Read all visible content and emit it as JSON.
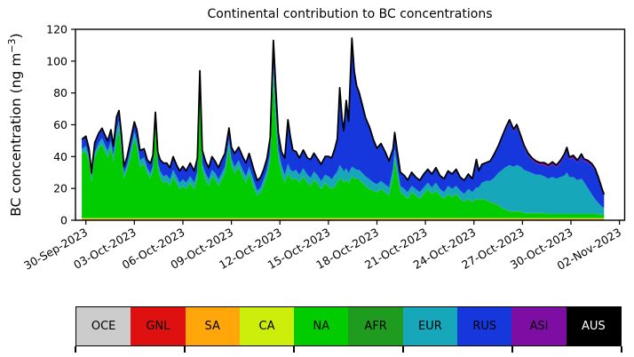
{
  "chart_data": {
    "type": "area",
    "stacked": true,
    "title": "Continental contribution to BC concentrations",
    "ylabel": "BC concentration (ng m−3)",
    "ylabel_parts": {
      "main": "BC concentration (ng m",
      "sup": "−3",
      "close": ")"
    },
    "xlabel": "",
    "ylim": [
      0,
      120
    ],
    "yticks": [
      0,
      20,
      40,
      60,
      80,
      100,
      120
    ],
    "grid": false,
    "legend_position": "bottom-colorbar",
    "x_axis": {
      "unit": "days since 30-Sep-2023",
      "tick_days": [
        0,
        3,
        6,
        9,
        12,
        15,
        18,
        21,
        24,
        27,
        30,
        33
      ],
      "tick_labels": [
        "30-Sep-2023",
        "03-Oct-2023",
        "06-Oct-2023",
        "09-Oct-2023",
        "12-Oct-2023",
        "15-Oct-2023",
        "18-Oct-2023",
        "21-Oct-2023",
        "24-Oct-2023",
        "27-Oct-2023",
        "30-Oct-2023",
        "02-Nov-2023"
      ]
    },
    "legend": {
      "entries": [
        {
          "label": "OCE",
          "color": "#CCCCCC",
          "text": "#000000"
        },
        {
          "label": "GNL",
          "color": "#DE1010",
          "text": "#000000"
        },
        {
          "label": "SA",
          "color": "#FFA60A",
          "text": "#000000"
        },
        {
          "label": "CA",
          "color": "#CDEE0A",
          "text": "#000000"
        },
        {
          "label": "NA",
          "color": "#00CC00",
          "text": "#000000"
        },
        {
          "label": "AFR",
          "color": "#1F9B1F",
          "text": "#000000"
        },
        {
          "label": "EUR",
          "color": "#16A7BB",
          "text": "#000000"
        },
        {
          "label": "RUS",
          "color": "#1637DC",
          "text": "#000000"
        },
        {
          "label": "ASI",
          "color": "#7E0DA3",
          "text": "#000000"
        },
        {
          "label": "AUS",
          "color": "#000000",
          "text": "#FFFFFF"
        }
      ]
    },
    "series_order": [
      "OCE",
      "GNL",
      "SA",
      "CA",
      "NA",
      "AFR",
      "EUR",
      "RUS",
      "ASI",
      "AUS"
    ],
    "constant_series": {
      "OCE": 0.4,
      "GNL": 0.15,
      "SA": 0.35,
      "CA": 0.5,
      "AFR": 0.25,
      "AUS": 0
    },
    "total_line_color": "#000000",
    "t_days": [
      -0.25,
      0.0,
      0.2,
      0.35,
      0.55,
      0.8,
      1.0,
      1.17,
      1.35,
      1.55,
      1.7,
      1.9,
      2.05,
      2.2,
      2.35,
      2.55,
      2.75,
      3.0,
      3.15,
      3.35,
      3.6,
      3.8,
      4.0,
      4.15,
      4.3,
      4.45,
      4.6,
      4.8,
      5.0,
      5.2,
      5.4,
      5.6,
      5.8,
      6.0,
      6.2,
      6.45,
      6.7,
      6.9,
      7.05,
      7.2,
      7.4,
      7.6,
      7.8,
      8.0,
      8.2,
      8.4,
      8.6,
      8.85,
      9.0,
      9.2,
      9.45,
      9.7,
      9.9,
      10.1,
      10.35,
      10.6,
      10.8,
      11.0,
      11.2,
      11.4,
      11.6,
      11.75,
      11.9,
      12.1,
      12.3,
      12.5,
      12.65,
      12.8,
      13.0,
      13.2,
      13.45,
      13.7,
      13.9,
      14.1,
      14.3,
      14.55,
      14.8,
      15.0,
      15.2,
      15.4,
      15.55,
      15.7,
      15.85,
      15.95,
      16.1,
      16.25,
      16.45,
      16.6,
      16.75,
      16.9,
      17.1,
      17.3,
      17.55,
      17.8,
      18.0,
      18.25,
      18.5,
      18.75,
      19.0,
      19.1,
      19.25,
      19.45,
      19.7,
      19.9,
      20.15,
      20.4,
      20.65,
      20.9,
      21.15,
      21.4,
      21.65,
      21.9,
      22.15,
      22.4,
      22.65,
      22.9,
      23.15,
      23.4,
      23.65,
      23.9,
      24.15,
      24.3,
      24.5,
      24.75,
      25.0,
      25.25,
      25.5,
      25.75,
      26.0,
      26.2,
      26.45,
      26.65,
      26.9,
      27.1,
      27.35,
      27.6,
      27.85,
      28.1,
      28.35,
      28.6,
      28.85,
      29.1,
      29.35,
      29.6,
      29.75,
      29.9,
      30.15,
      30.4,
      30.65,
      30.8,
      31.05,
      31.3,
      31.5,
      31.7,
      31.9,
      32.05
    ],
    "series": {
      "NA": [
        40,
        42,
        35,
        23,
        38,
        44,
        46,
        42,
        38,
        44,
        35,
        50,
        56,
        42,
        25,
        30,
        38,
        50,
        45,
        32,
        34,
        28,
        25,
        30,
        58,
        32,
        25,
        22,
        23,
        20,
        26,
        22,
        18,
        20,
        18,
        22,
        18,
        25,
        78,
        30,
        24,
        20,
        26,
        24,
        20,
        24,
        28,
        45,
        33,
        28,
        32,
        26,
        22,
        28,
        20,
        14,
        16,
        20,
        26,
        36,
        90,
        60,
        38,
        28,
        22,
        28,
        25,
        24,
        25,
        22,
        26,
        22,
        20,
        24,
        22,
        18,
        22,
        20,
        18,
        20,
        22,
        25,
        24,
        22,
        24,
        22,
        26,
        25,
        24,
        24,
        22,
        20,
        18,
        17,
        16,
        18,
        16,
        14,
        26,
        38,
        28,
        16,
        14,
        12,
        16,
        14,
        12,
        15,
        18,
        15,
        17,
        14,
        12,
        15,
        13,
        15,
        12,
        10,
        12,
        10,
        12,
        11,
        12,
        11,
        10,
        9,
        8,
        6,
        5,
        4,
        4,
        4,
        4,
        3,
        3,
        3,
        3,
        3,
        3,
        2.5,
        2.5,
        2.5,
        2.5,
        2.5,
        2.5,
        2.5,
        2.5,
        2.5,
        2.5,
        2.5,
        2.5,
        2.5,
        2.5,
        2.2,
        2.0,
        2.0
      ],
      "EUR": [
        3,
        3,
        3,
        2,
        3,
        3,
        4,
        4,
        4,
        4,
        4,
        5,
        5,
        4,
        3,
        3,
        4,
        4,
        4,
        4,
        4,
        3,
        3,
        3,
        3,
        3,
        4,
        4,
        4,
        4,
        4,
        4,
        4,
        4,
        4,
        4,
        4,
        4,
        4,
        4,
        4,
        4,
        4,
        4,
        4,
        4,
        4,
        4,
        4,
        4,
        4,
        4,
        4,
        4,
        4,
        3,
        3,
        4,
        4,
        5,
        6,
        6,
        5,
        5,
        5,
        6,
        5,
        5,
        5,
        5,
        5,
        5,
        5,
        5,
        5,
        5,
        5,
        6,
        6,
        7,
        7,
        8,
        7,
        7,
        7,
        6,
        6,
        6,
        6,
        6,
        6,
        6,
        6,
        5,
        5,
        5,
        5,
        5,
        5,
        5,
        5,
        4,
        4,
        4,
        4,
        4,
        4,
        4,
        4,
        4,
        5,
        4,
        4,
        5,
        5,
        5,
        5,
        5,
        6,
        6,
        7,
        8,
        10,
        12,
        13,
        16,
        20,
        24,
        27,
        29,
        28,
        29,
        28,
        27,
        26,
        25,
        24,
        24,
        23,
        22,
        23,
        22,
        23,
        24,
        26,
        23,
        23,
        21,
        22,
        20,
        16,
        12,
        9,
        7,
        5,
        4
      ],
      "RUS": [
        6,
        6,
        5,
        3,
        6,
        6,
        6,
        6,
        6,
        7,
        6,
        8,
        6,
        6,
        4,
        5,
        6,
        6,
        6,
        6,
        5,
        5,
        6,
        6,
        5,
        6,
        7,
        8,
        7,
        7,
        8,
        7,
        7,
        8,
        7,
        8,
        7,
        8,
        10,
        8,
        7,
        7,
        8,
        7,
        7,
        8,
        8,
        7,
        7,
        8,
        8,
        8,
        8,
        8,
        7,
        6,
        6,
        6,
        7,
        9,
        15,
        14,
        10,
        8,
        10,
        27,
        20,
        13,
        11,
        10,
        11,
        10,
        11,
        11,
        10,
        10,
        11,
        12,
        13,
        16,
        20,
        48,
        30,
        25,
        42,
        32,
        80,
        60,
        52,
        48,
        42,
        36,
        32,
        26,
        22,
        23,
        20,
        16,
        12,
        10,
        9,
        8,
        8,
        7,
        8,
        7,
        7,
        8,
        8,
        8,
        9,
        8,
        8,
        9,
        9,
        10,
        8,
        8,
        9,
        8,
        17,
        10,
        11,
        11,
        12,
        14,
        16,
        20,
        24,
        27,
        22,
        24,
        18,
        14,
        10,
        8,
        7,
        6,
        7,
        7,
        8,
        7,
        9,
        12,
        14,
        11,
        12,
        11,
        14,
        13,
        16,
        18,
        18,
        15,
        11,
        8
      ],
      "ASI": [
        0.2,
        0.2,
        0.2,
        0.2,
        0.2,
        0.2,
        0.2,
        0.2,
        0.2,
        0.2,
        0.2,
        0.3,
        0.3,
        0.3,
        0.2,
        0.2,
        0.2,
        0.2,
        0.2,
        0.2,
        0.2,
        0.2,
        0.2,
        0.2,
        0.2,
        0.2,
        0.2,
        0.3,
        0.3,
        0.3,
        0.3,
        0.3,
        0.3,
        0.3,
        0.3,
        0.3,
        0.3,
        0.3,
        0.3,
        0.3,
        0.3,
        0.3,
        0.3,
        0.3,
        0.3,
        0.3,
        0.3,
        0.3,
        0.3,
        0.3,
        0.3,
        0.3,
        0.3,
        0.3,
        0.3,
        0.3,
        0.3,
        0.3,
        0.3,
        0.3,
        0.4,
        0.4,
        0.4,
        0.4,
        0.4,
        0.5,
        0.5,
        0.5,
        0.5,
        0.5,
        0.5,
        0.5,
        0.5,
        0.5,
        0.5,
        0.5,
        0.5,
        0.5,
        0.5,
        0.5,
        0.6,
        0.6,
        0.6,
        0.6,
        0.6,
        0.6,
        0.8,
        0.8,
        0.8,
        0.8,
        0.7,
        0.7,
        0.7,
        0.6,
        0.6,
        0.6,
        0.6,
        0.5,
        0.5,
        0.5,
        0.5,
        0.5,
        0.5,
        0.5,
        0.5,
        0.5,
        0.4,
        0.4,
        0.4,
        0.4,
        0.4,
        0.4,
        0.4,
        0.4,
        0.4,
        0.4,
        0.4,
        0.4,
        0.4,
        0.4,
        0.5,
        0.5,
        0.5,
        0.5,
        0.6,
        0.8,
        1.0,
        1.2,
        1.4,
        1.5,
        1.5,
        1.5,
        1.5,
        1.5,
        1.5,
        1.5,
        1.5,
        1.5,
        1.5,
        1.5,
        1.5,
        1.5,
        1.5,
        1.6,
        1.6,
        1.6,
        1.6,
        1.5,
        1.5,
        1.5,
        1.4,
        1.3,
        1.2,
        1.0,
        0.8,
        0.6
      ]
    }
  }
}
